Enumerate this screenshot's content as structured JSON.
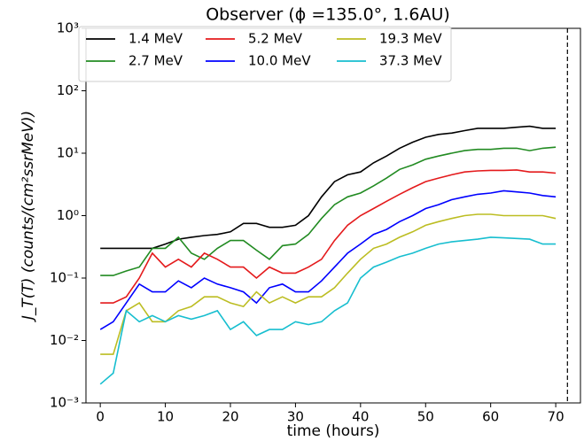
{
  "chart_data": {
    "type": "line",
    "title": "Observer (ϕ =135.0°, 1.6AU)",
    "xlabel": "time (hours)",
    "ylabel": "J_T(T) (counts/(cm²ssrMeV))",
    "x": [
      0,
      2,
      4,
      6,
      8,
      10,
      12,
      14,
      16,
      18,
      20,
      22,
      24,
      26,
      28,
      30,
      32,
      34,
      36,
      38,
      40,
      42,
      44,
      46,
      48,
      50,
      52,
      54,
      56,
      58,
      60,
      62,
      64,
      66,
      68,
      70
    ],
    "series": [
      {
        "name": "1.4 MeV",
        "color": "#000000",
        "values": [
          0.3,
          0.3,
          0.3,
          0.3,
          0.3,
          0.35,
          0.42,
          0.45,
          0.48,
          0.5,
          0.55,
          0.75,
          0.75,
          0.65,
          0.65,
          0.7,
          1.0,
          2.0,
          3.5,
          4.5,
          5.0,
          7,
          9,
          12,
          15,
          18,
          20,
          21,
          23,
          25,
          25,
          25,
          26,
          27,
          25,
          25
        ]
      },
      {
        "name": "2.7 MeV",
        "color": "#228b22",
        "values": [
          0.11,
          0.11,
          0.13,
          0.15,
          0.3,
          0.3,
          0.45,
          0.25,
          0.2,
          0.3,
          0.4,
          0.4,
          0.28,
          0.2,
          0.33,
          0.35,
          0.5,
          0.9,
          1.5,
          2,
          2.3,
          3,
          4,
          5.5,
          6.5,
          8,
          9,
          10,
          11,
          11.5,
          11.5,
          12,
          12,
          11,
          12,
          12.5
        ]
      },
      {
        "name": "5.2 MeV",
        "color": "#e41a1c",
        "values": [
          0.04,
          0.04,
          0.05,
          0.1,
          0.25,
          0.15,
          0.2,
          0.15,
          0.25,
          0.2,
          0.15,
          0.15,
          0.1,
          0.15,
          0.12,
          0.12,
          0.15,
          0.2,
          0.4,
          0.7,
          1.0,
          1.3,
          1.7,
          2.2,
          2.8,
          3.5,
          4,
          4.5,
          5,
          5.2,
          5.3,
          5.3,
          5.4,
          5,
          5,
          4.8
        ]
      },
      {
        "name": "10.0 MeV",
        "color": "#0000ff",
        "values": [
          0.015,
          0.02,
          0.04,
          0.08,
          0.06,
          0.06,
          0.09,
          0.07,
          0.1,
          0.08,
          0.07,
          0.06,
          0.04,
          0.07,
          0.08,
          0.06,
          0.06,
          0.09,
          0.15,
          0.25,
          0.35,
          0.5,
          0.6,
          0.8,
          1.0,
          1.3,
          1.5,
          1.8,
          2.0,
          2.2,
          2.3,
          2.5,
          2.4,
          2.3,
          2.1,
          2.0
        ]
      },
      {
        "name": "19.3 MeV",
        "color": "#bcbd22",
        "values": [
          0.006,
          0.006,
          0.03,
          0.04,
          0.02,
          0.02,
          0.03,
          0.035,
          0.05,
          0.05,
          0.04,
          0.035,
          0.06,
          0.04,
          0.05,
          0.04,
          0.05,
          0.05,
          0.07,
          0.12,
          0.2,
          0.3,
          0.35,
          0.45,
          0.55,
          0.7,
          0.8,
          0.9,
          1.0,
          1.05,
          1.05,
          1.0,
          1.0,
          1.0,
          1.0,
          0.9
        ]
      },
      {
        "name": "37.3 MeV",
        "color": "#17becf",
        "values": [
          0.002,
          0.003,
          0.03,
          0.02,
          0.025,
          0.02,
          0.025,
          0.022,
          0.025,
          0.03,
          0.015,
          0.02,
          0.012,
          0.015,
          0.015,
          0.02,
          0.018,
          0.02,
          0.03,
          0.04,
          0.1,
          0.15,
          0.18,
          0.22,
          0.25,
          0.3,
          0.35,
          0.38,
          0.4,
          0.42,
          0.45,
          0.44,
          0.43,
          0.42,
          0.35,
          0.35
        ]
      }
    ],
    "xlim": [
      -2.2,
      73.8
    ],
    "xticks": [
      0,
      10,
      20,
      30,
      40,
      50,
      60,
      70
    ],
    "ylim": [
      0.001,
      1000
    ],
    "log_y": true,
    "yticks": [
      {
        "value": 0.001,
        "label": "10⁻³"
      },
      {
        "value": 0.01,
        "label": "10⁻²"
      },
      {
        "value": 0.1,
        "label": "10⁻¹"
      },
      {
        "value": 1,
        "label": "10⁰"
      },
      {
        "value": 10,
        "label": "10¹"
      },
      {
        "value": 100,
        "label": "10²"
      },
      {
        "value": 1000,
        "label": "10³"
      }
    ],
    "vline_x": 71.8,
    "legend": "upper left",
    "grid": false
  }
}
